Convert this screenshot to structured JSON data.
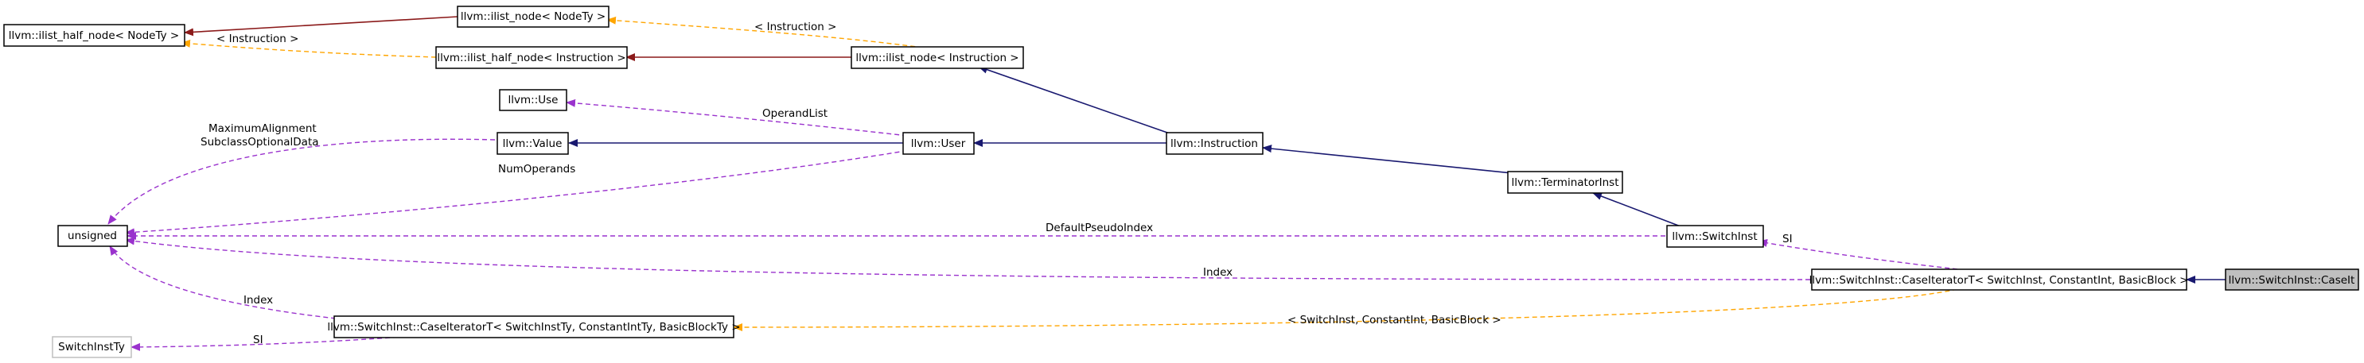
{
  "nodes": {
    "ilist_half_node_nodety": "llvm::ilist_half_node< NodeTy >",
    "ilist_node_nodety": "llvm::ilist_node< NodeTy >",
    "ilist_half_node_instruction": "llvm::ilist_half_node< Instruction >",
    "ilist_node_instruction": "llvm::ilist_node< Instruction >",
    "use": "llvm::Use",
    "value": "llvm::Value",
    "user": "llvm::User",
    "instruction": "llvm::Instruction",
    "terminator_inst": "llvm::TerminatorInst",
    "switch_inst": "llvm::SwitchInst",
    "case_iterator_t_concrete": "llvm::SwitchInst::CaseIteratorT< SwitchInst, ConstantInt, BasicBlock >",
    "case_it": "llvm::SwitchInst::CaseIt",
    "unsigned": "unsigned",
    "case_iterator_t_generic": "llvm::SwitchInst::CaseIteratorT< SwitchInstTy, ConstantIntTy, BasicBlockTy >",
    "switch_inst_ty": "SwitchInstTy"
  },
  "edge_labels": {
    "instruction_template_1": "< Instruction >",
    "instruction_template_2": "< Instruction >",
    "operand_list": "OperandList",
    "maximum_alignment": "MaximumAlignment",
    "subclass_optional_data": "SubclassOptionalData",
    "num_operands": "NumOperands",
    "default_pseudo_index": "DefaultPseudoIndex",
    "si_switchinst": "SI",
    "index_concrete": "Index",
    "index_generic": "Index",
    "template_args": "< SwitchInst, ConstantInt, BasicBlock >",
    "si_generic": "SI"
  },
  "colors": {
    "inheritance": "#191970",
    "member": "#9a32cd",
    "template_instance": "#ffa500",
    "template_red": "#8b1a1a",
    "highlight_fill": "#bfbfbf"
  }
}
